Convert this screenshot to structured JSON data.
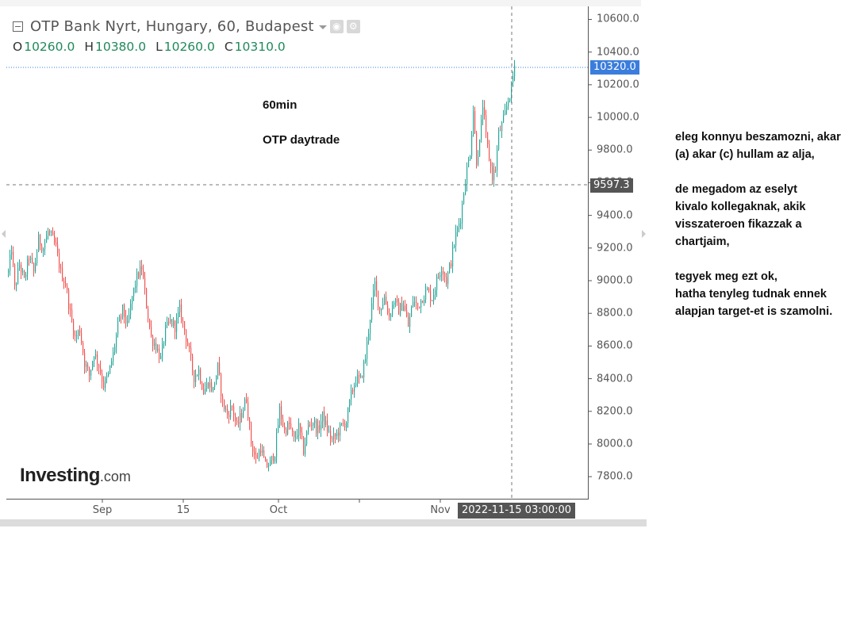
{
  "header": {
    "title": "OTP Bank Nyrt, Hungary, 60, Budapest",
    "ohlc": {
      "o_key": "O",
      "o": "10260.0",
      "h_key": "H",
      "h": "10380.0",
      "l_key": "L",
      "l": "10260.0",
      "c_key": "C",
      "c": "10310.0"
    },
    "icons": [
      "minus-square-icon",
      "chevron-down-icon",
      "eye-icon",
      "gear-icon"
    ]
  },
  "annotations": {
    "timeframe": "60min",
    "label": "OTP daytrade"
  },
  "notes": {
    "para1": [
      "eleg konnyu beszamozni, akar",
      "(a) akar (c) hullam az alja,"
    ],
    "para2": [
      "de megadom az eselyt",
      "kivalo kollegaknak, akik",
      "visszateroen fikazzak a",
      "chartjaim,"
    ],
    "para3": [
      "tegyek meg ezt ok,",
      "hatha tenyleg tudnak ennek",
      "alapjan target-et is szamolni."
    ]
  },
  "logo": {
    "main": "Investing",
    "suffix": ".com"
  },
  "crosshair": {
    "time_label": "2022-11-15 03:00:00",
    "price_label": "9597.3",
    "price": 9597.3
  },
  "last_price": {
    "label": "10320.0",
    "value": 10320.0,
    "color": "#3b7ddd"
  },
  "colors": {
    "up": "#26a69a",
    "down": "#ef5350",
    "text": "#555555",
    "ohlc": "#1f8a5a"
  },
  "chart_data": {
    "type": "candlestick",
    "title": "OTP Bank Nyrt, Hungary, 60, Budapest",
    "ylim": [
      7660,
      10680
    ],
    "y_ticks": [
      7800,
      8000,
      8200,
      8400,
      8600,
      8800,
      9000,
      9200,
      9400,
      9600,
      9800,
      10000,
      10200,
      10400,
      10600
    ],
    "y_tick_labels": [
      "7800.0",
      "8000.0",
      "8200.0",
      "8400.0",
      "8600.0",
      "8800.0",
      "9000.0",
      "9200.0",
      "9400.0",
      "9600.0",
      "9800.0",
      "10000.0",
      "10200.0",
      "10400.0",
      "10600.0"
    ],
    "x_tick_labels": [
      "Sep",
      "15",
      "Oct",
      "Nov"
    ],
    "grid": false,
    "series_path": [
      [
        0,
        9050
      ],
      [
        4,
        9200
      ],
      [
        8,
        8950
      ],
      [
        14,
        9100
      ],
      [
        20,
        9000
      ],
      [
        26,
        9150
      ],
      [
        32,
        9050
      ],
      [
        38,
        9250
      ],
      [
        44,
        9200
      ],
      [
        50,
        9300
      ],
      [
        55,
        9260
      ],
      [
        60,
        9200
      ],
      [
        66,
        9050
      ],
      [
        72,
        8980
      ],
      [
        78,
        8800
      ],
      [
        84,
        8650
      ],
      [
        90,
        8700
      ],
      [
        96,
        8500
      ],
      [
        102,
        8420
      ],
      [
        108,
        8560
      ],
      [
        114,
        8480
      ],
      [
        120,
        8360
      ],
      [
        126,
        8420
      ],
      [
        132,
        8550
      ],
      [
        138,
        8720
      ],
      [
        144,
        8820
      ],
      [
        150,
        8720
      ],
      [
        156,
        8900
      ],
      [
        162,
        9020
      ],
      [
        168,
        9080
      ],
      [
        174,
        8850
      ],
      [
        180,
        8650
      ],
      [
        186,
        8600
      ],
      [
        192,
        8520
      ],
      [
        198,
        8700
      ],
      [
        204,
        8750
      ],
      [
        210,
        8720
      ],
      [
        216,
        8820
      ],
      [
        222,
        8700
      ],
      [
        228,
        8560
      ],
      [
        234,
        8410
      ],
      [
        240,
        8450
      ],
      [
        246,
        8320
      ],
      [
        252,
        8380
      ],
      [
        258,
        8330
      ],
      [
        264,
        8470
      ],
      [
        270,
        8250
      ],
      [
        276,
        8180
      ],
      [
        282,
        8230
      ],
      [
        288,
        8100
      ],
      [
        294,
        8190
      ],
      [
        300,
        8280
      ],
      [
        306,
        8010
      ],
      [
        312,
        7900
      ],
      [
        318,
        7980
      ],
      [
        324,
        7860
      ],
      [
        330,
        7880
      ],
      [
        336,
        7950
      ],
      [
        342,
        8210
      ],
      [
        348,
        8080
      ],
      [
        354,
        8120
      ],
      [
        360,
        8020
      ],
      [
        366,
        8100
      ],
      [
        372,
        7960
      ],
      [
        378,
        8110
      ],
      [
        384,
        8140
      ],
      [
        390,
        8080
      ],
      [
        396,
        8170
      ],
      [
        402,
        8090
      ],
      [
        408,
        8020
      ],
      [
        414,
        8060
      ],
      [
        420,
        8110
      ],
      [
        426,
        8140
      ],
      [
        432,
        8300
      ],
      [
        438,
        8400
      ],
      [
        444,
        8390
      ],
      [
        450,
        8530
      ],
      [
        456,
        8780
      ],
      [
        462,
        8980
      ],
      [
        468,
        8820
      ],
      [
        474,
        8900
      ],
      [
        480,
        8780
      ],
      [
        486,
        8880
      ],
      [
        492,
        8820
      ],
      [
        498,
        8860
      ],
      [
        504,
        8720
      ],
      [
        510,
        8880
      ],
      [
        516,
        8840
      ],
      [
        522,
        8900
      ],
      [
        528,
        8940
      ],
      [
        534,
        8890
      ],
      [
        540,
        9000
      ],
      [
        546,
        9090
      ],
      [
        552,
        9000
      ],
      [
        558,
        9120
      ],
      [
        564,
        9280
      ],
      [
        570,
        9390
      ],
      [
        576,
        9620
      ],
      [
        582,
        9790
      ],
      [
        586,
        10050
      ],
      [
        590,
        9740
      ],
      [
        594,
        9840
      ],
      [
        598,
        10080
      ],
      [
        602,
        9880
      ],
      [
        606,
        9750
      ],
      [
        610,
        9640
      ],
      [
        614,
        9690
      ],
      [
        618,
        9900
      ],
      [
        622,
        9950
      ],
      [
        626,
        10020
      ],
      [
        630,
        10110
      ],
      [
        634,
        10180
      ],
      [
        638,
        10320
      ]
    ]
  }
}
